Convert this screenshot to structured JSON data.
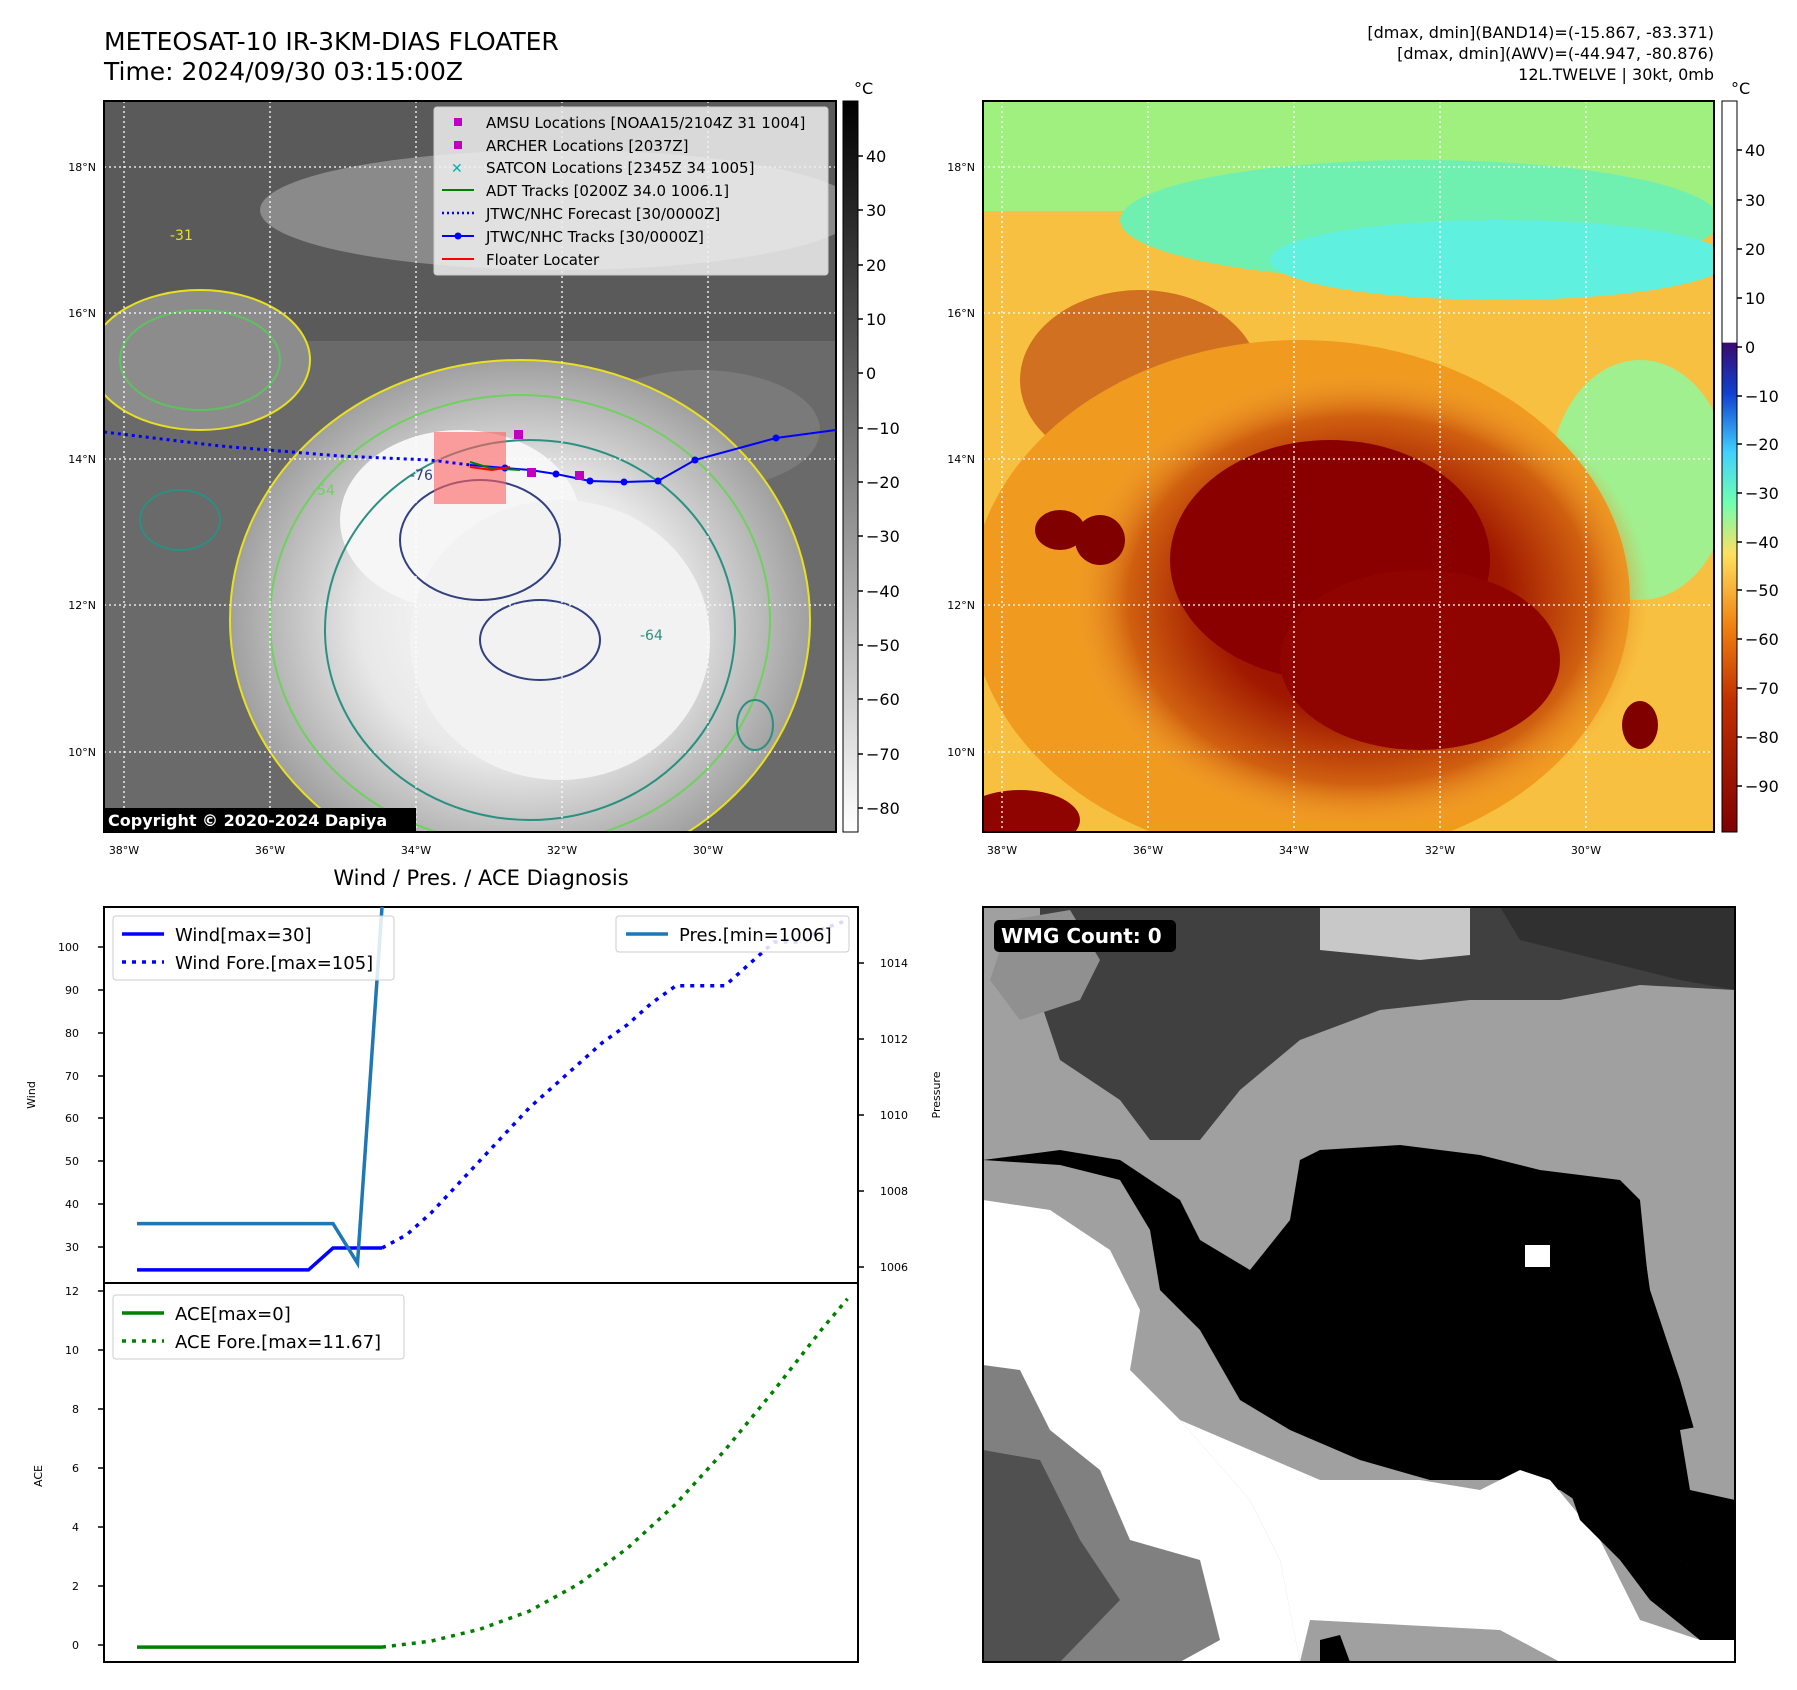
{
  "header": {
    "title": "METEOSAT-10 IR-3KM-DIAS FLOATER",
    "time": "Time: 2024/09/30 03:15:00Z",
    "right_lines": [
      "[dmax, dmin](BAND14)=(-15.867, -83.371)",
      "[dmax, dmin](AWV)=(-44.947, -80.876)",
      "12L.TWELVE | 30kt, 0mb"
    ]
  },
  "map": {
    "lat_labels": [
      "18°N",
      "16°N",
      "14°N",
      "12°N",
      "10°N"
    ],
    "lon_labels": [
      "38°W",
      "36°W",
      "34°W",
      "32°W",
      "30°W"
    ],
    "copyright": "Copyright © 2020-2024 Dapiya",
    "contour_labels": [
      "-31",
      "-54",
      "-64",
      "-76"
    ]
  },
  "ir_colorbar": {
    "unit": "°C",
    "ticks": [
      "40",
      "30",
      "20",
      "10",
      "0",
      "−10",
      "−20",
      "−30",
      "−40",
      "−50",
      "−60",
      "−70",
      "−80"
    ]
  },
  "wv_colorbar": {
    "unit": "°C",
    "ticks": [
      "40",
      "30",
      "20",
      "10",
      "0",
      "−10",
      "−20",
      "−30",
      "−40",
      "−50",
      "−60",
      "−70",
      "−80",
      "−90"
    ]
  },
  "legend": {
    "items": [
      {
        "label": "AMSU Locations [NOAA15/2104Z 31 1004]",
        "color": "#c000c0",
        "marker": "square"
      },
      {
        "label": "ARCHER Locations [2037Z]",
        "color": "#c000c0",
        "marker": "square"
      },
      {
        "label": "SATCON Locations [2345Z 34 1005]",
        "color": "#00b0b0",
        "marker": "x"
      },
      {
        "label": "ADT Tracks [0200Z 34.0 1006.1]",
        "color": "#008000",
        "marker": "line"
      },
      {
        "label": "JTWC/NHC Forecast [30/0000Z]",
        "color": "#0000ff",
        "marker": "dotted"
      },
      {
        "label": "JTWC/NHC Tracks [30/0000Z]",
        "color": "#0000ff",
        "marker": "line-dot"
      },
      {
        "label": "Floater Locater",
        "color": "#ff0000",
        "marker": "line"
      }
    ]
  },
  "diag": {
    "title": "Wind / Pres. / ACE Diagnosis",
    "wind_ylabel": "Wind",
    "pres_ylabel": "Pressure",
    "ace_ylabel": "ACE",
    "wind_ticks": [
      "100",
      "90",
      "80",
      "70",
      "60",
      "50",
      "40",
      "30"
    ],
    "pres_ticks": [
      "1014",
      "1012",
      "1010",
      "1008",
      "1006"
    ],
    "ace_ticks": [
      "12",
      "10",
      "8",
      "6",
      "4",
      "2",
      "0"
    ],
    "legend_wind": [
      "Wind[max=30]",
      "Wind Fore.[max=105]"
    ],
    "legend_pres": [
      "Pres.[min=1006]"
    ],
    "legend_ace": [
      "ACE[max=0]",
      "ACE Fore.[max=11.67]"
    ]
  },
  "wmg": {
    "label": "WMG Count: 0"
  },
  "chart_data": [
    {
      "type": "line",
      "title": "Wind / Pres. / ACE Diagnosis",
      "ylabel": "Wind",
      "ylim": [
        22,
        108
      ],
      "series": [
        {
          "name": "Wind[max=30]",
          "x": [
            0,
            7,
            8,
            9,
            10
          ],
          "values": [
            25,
            25,
            30,
            30,
            30
          ]
        },
        {
          "name": "Wind Fore.[max=105]",
          "x": [
            10,
            11,
            12,
            13,
            14,
            15,
            16,
            17,
            18,
            19,
            20,
            21,
            22,
            23,
            24,
            25,
            26,
            27,
            28,
            29
          ],
          "values": [
            30,
            33,
            38,
            44,
            50,
            56,
            62,
            67,
            72,
            77,
            81,
            86,
            90,
            90,
            90,
            95,
            100,
            100,
            103,
            105
          ]
        }
      ]
    },
    {
      "type": "line",
      "ylabel": "Pressure",
      "ylim": [
        1005.5,
        1015
      ],
      "series": [
        {
          "name": "Pres.[min=1006]",
          "x": [
            0,
            8,
            9,
            10
          ],
          "values": [
            1007,
            1007,
            1006,
            1015
          ]
        }
      ]
    },
    {
      "type": "line",
      "ylabel": "ACE",
      "ylim": [
        -0.5,
        12.2
      ],
      "series": [
        {
          "name": "ACE[max=0]",
          "x": [
            0,
            10
          ],
          "values": [
            0,
            0
          ]
        },
        {
          "name": "ACE Fore.[max=11.67]",
          "x": [
            10,
            12,
            14,
            16,
            18,
            20,
            22,
            24,
            26,
            28,
            29
          ],
          "values": [
            0,
            0.2,
            0.6,
            1.2,
            2.1,
            3.3,
            4.8,
            6.6,
            8.6,
            10.7,
            11.67
          ]
        }
      ]
    }
  ]
}
